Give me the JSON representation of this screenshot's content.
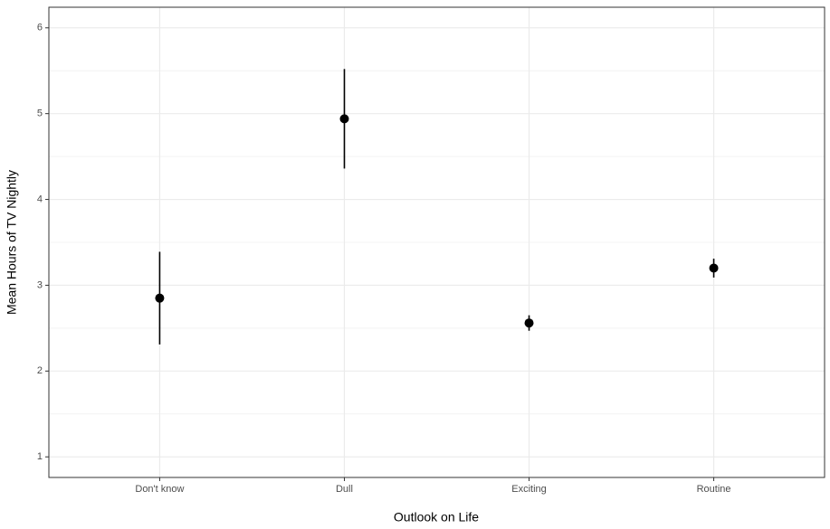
{
  "chart_data": {
    "type": "pointrange",
    "x_label": "Outlook on Life",
    "y_label": "Mean Hours of TV Nightly",
    "categories": [
      "Don't know",
      "Dull",
      "Exciting",
      "Routine"
    ],
    "values": [
      2.85,
      4.94,
      2.56,
      3.2
    ],
    "errors": [
      0.54,
      0.58,
      0.09,
      0.11
    ],
    "color": "#000000",
    "ylim": [
      0.76,
      6.24
    ],
    "yticks": [
      1,
      2,
      3,
      4,
      5,
      6
    ],
    "grid": true
  }
}
